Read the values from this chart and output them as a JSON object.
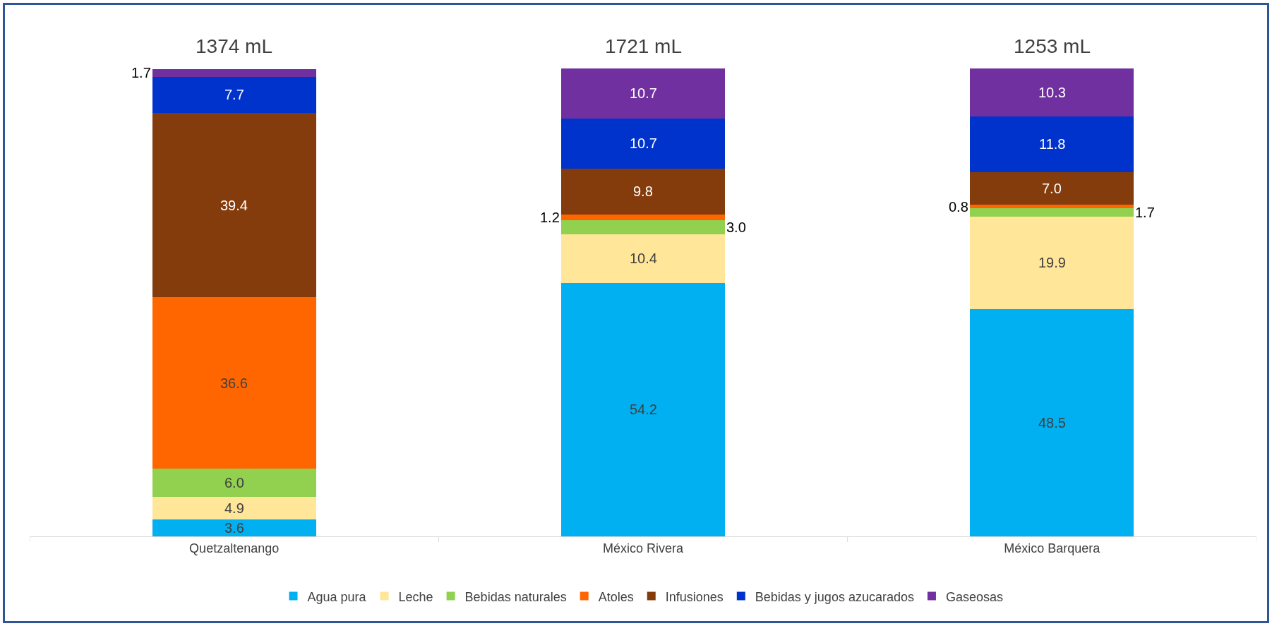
{
  "chart_data": {
    "type": "bar",
    "stacked": true,
    "categories": [
      "Quetzaltenango",
      "México Rivera",
      "México Barquera"
    ],
    "series": [
      {
        "name": "Agua pura",
        "color": "#00b0f0",
        "values": [
          3.6,
          54.2,
          48.5
        ],
        "value_labels": [
          "3.6",
          "54.2",
          "48.5"
        ]
      },
      {
        "name": "Leche",
        "color": "#ffe699",
        "values": [
          4.9,
          10.4,
          19.9
        ],
        "value_labels": [
          "4.9",
          "10.4",
          "19.9"
        ]
      },
      {
        "name": "Bebidas naturales",
        "color": "#92d050",
        "values": [
          6.0,
          3.0,
          1.7
        ],
        "value_labels": [
          "6.0",
          "3.0",
          "1.7"
        ]
      },
      {
        "name": "Atoles",
        "color": "#ff6600",
        "values": [
          36.6,
          1.2,
          0.8
        ],
        "value_labels": [
          "36.6",
          "1.2",
          "0.8"
        ]
      },
      {
        "name": "Infusiones",
        "color": "#843c0c",
        "values": [
          39.4,
          9.8,
          7.0
        ],
        "value_labels": [
          "39.4",
          "9.8",
          "7.0"
        ]
      },
      {
        "name": "Bebidas y jugos azucarados",
        "color": "#0033cc",
        "values": [
          7.7,
          10.7,
          11.8
        ],
        "value_labels": [
          "7.7",
          "10.7",
          "11.8"
        ]
      },
      {
        "name": "Gaseosas",
        "color": "#7030a0",
        "values": [
          1.7,
          10.7,
          10.3
        ],
        "value_labels": [
          "1.7",
          "10.7",
          "10.3"
        ]
      }
    ],
    "annotations": [
      {
        "text": "1374 mL",
        "x": "Quetzaltenango",
        "y": 100
      },
      {
        "text": "1721 mL",
        "x": "México Rivera",
        "y": 100
      },
      {
        "text": "1253 mL",
        "x": "México Barquera",
        "y": 100
      }
    ],
    "ylim": [
      0,
      100
    ],
    "tick_labels": "x",
    "legend": "bottom"
  }
}
